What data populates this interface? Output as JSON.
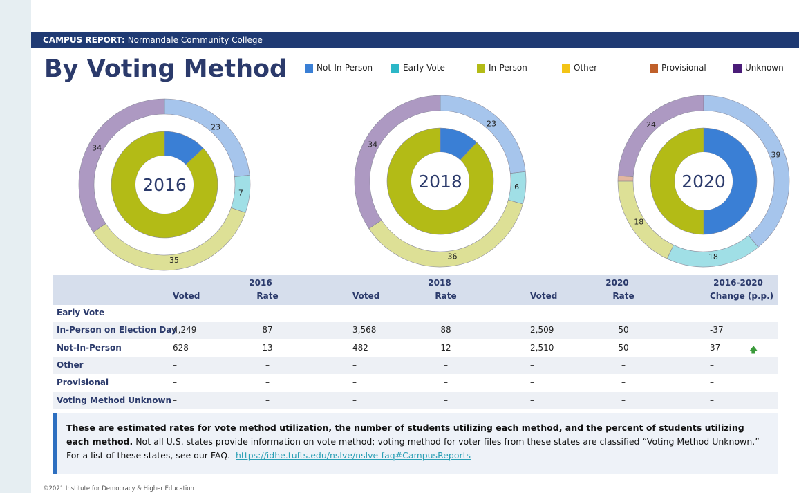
{
  "header": {
    "label": "CAMPUS REPORT:",
    "campus": "Normandale Community College"
  },
  "title": "By Voting Method",
  "legend": {
    "categories": [
      "Not-In-Person",
      "Early Vote",
      "In-Person",
      "Other",
      "Provisional",
      "Unknown"
    ],
    "colors": [
      "#3a7fd5",
      "#2cb7c7",
      "#b3bb16",
      "#f3c416",
      "#c0602a",
      "#4a1c78"
    ]
  },
  "chart_data": [
    {
      "type": "donut",
      "title": "2016",
      "outer": [
        23,
        7,
        35,
        null,
        null,
        34
      ],
      "inner": [
        13,
        null,
        87,
        null,
        null,
        null
      ]
    },
    {
      "type": "donut",
      "title": "2018",
      "outer": [
        23,
        6,
        36,
        null,
        null,
        34
      ],
      "inner": [
        12,
        null,
        88,
        null,
        null,
        null
      ]
    },
    {
      "type": "donut",
      "title": "2020",
      "outer": [
        39,
        18,
        18,
        null,
        1,
        24
      ],
      "inner": [
        50,
        null,
        50,
        null,
        null,
        null
      ]
    }
  ],
  "table": {
    "groups": [
      "2016",
      "2018",
      "2020",
      "2016-2020"
    ],
    "subheaders": [
      "Voted",
      "Rate",
      "Voted",
      "Rate",
      "Voted",
      "Rate",
      "Change (p.p.)"
    ],
    "rows": [
      [
        "Early Vote",
        "–",
        "–",
        "–",
        "–",
        "–",
        "–",
        "–"
      ],
      [
        "In-Person on Election Day",
        "4,249",
        87,
        "3,568",
        88,
        "2,509",
        50,
        -37
      ],
      [
        "Not-In-Person",
        628,
        13,
        482,
        12,
        "2,510",
        50,
        37
      ],
      [
        "Other",
        "–",
        "–",
        "–",
        "–",
        "–",
        "–",
        "–"
      ],
      [
        "Provisional",
        "–",
        "–",
        "–",
        "–",
        "–",
        "–",
        "–"
      ],
      [
        "Voting Method Unknown",
        "–",
        "–",
        "–",
        "–",
        "–",
        "–",
        "–"
      ]
    ]
  },
  "note": {
    "bold": "These are estimated rates for vote method utilization, the number of students utilizing each method, and the percent of students utilizing each method.",
    "text": " Not all U.S. states provide information on vote method; voting method for voter files from these states are classified “Voting Method Unknown.”",
    "faq": "For a list of these states, see our FAQ.",
    "link": "https://idhe.tufts.edu/nslve/nslve-faq#CampusReports"
  },
  "footer": "©2021 Institute for Democracy & Higher Education"
}
